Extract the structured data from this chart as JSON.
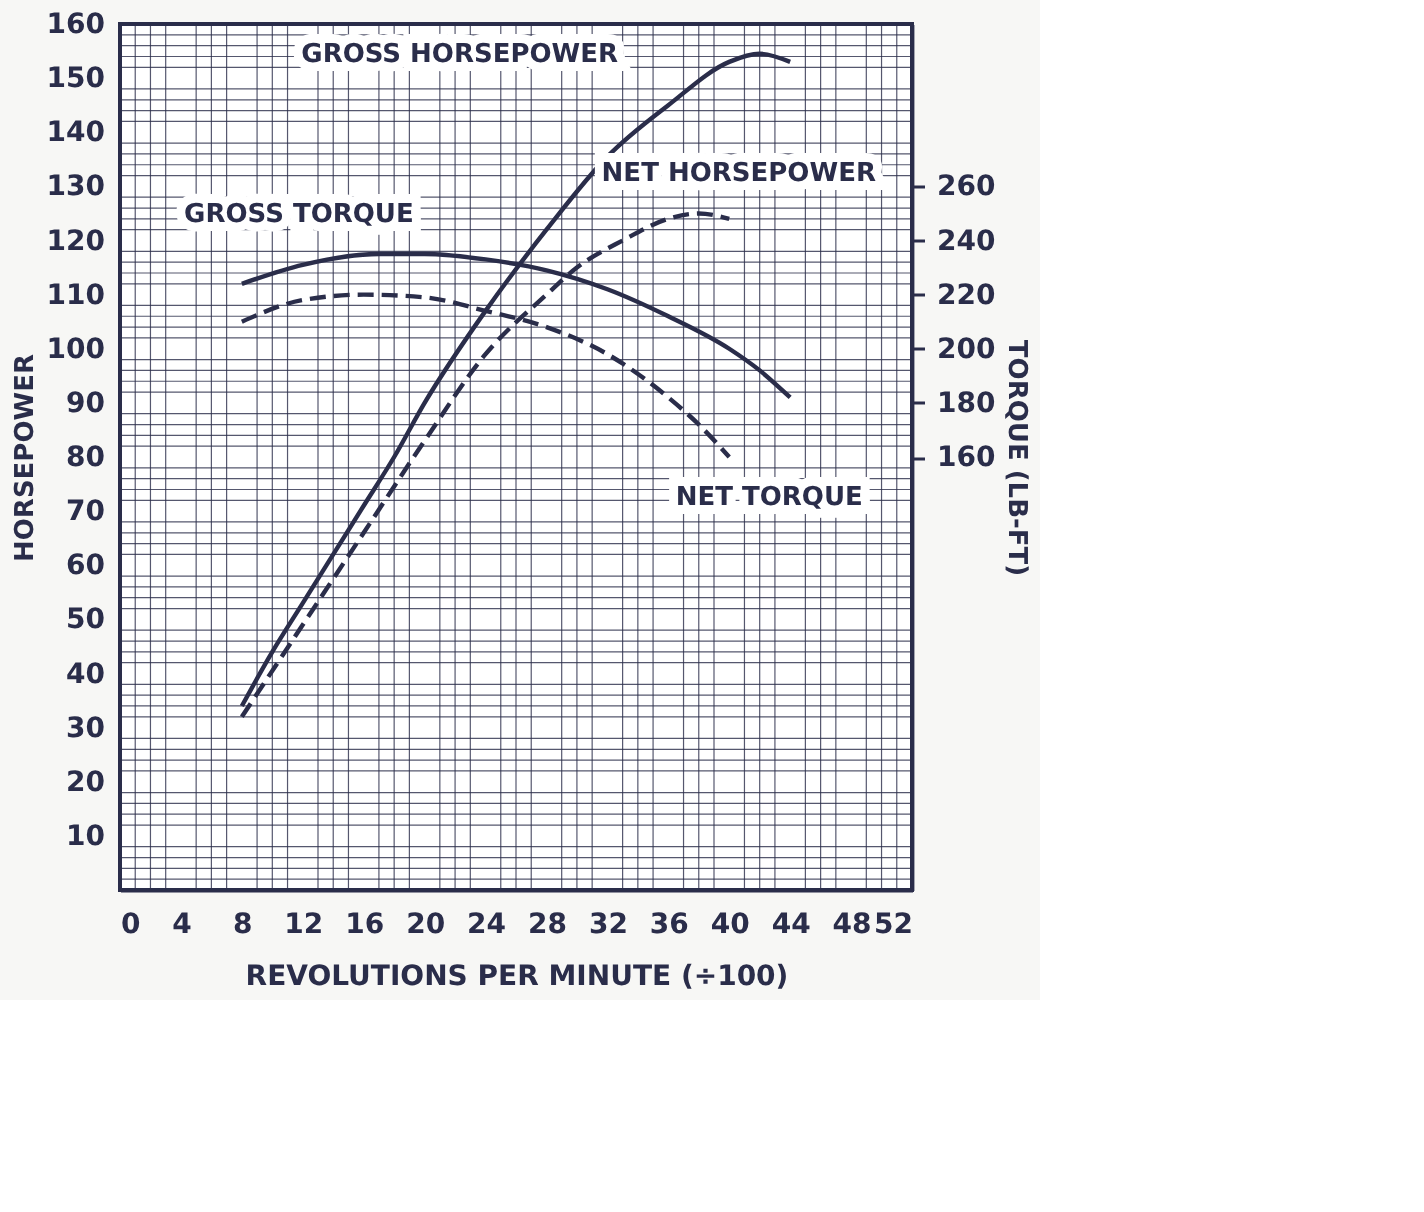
{
  "chart_data": {
    "type": "line",
    "xlabel": "REVOLUTIONS PER MINUTE (÷100)",
    "ylabel": "HORSEPOWER",
    "y2label": "TORQUE (LB-FT)",
    "xlim": [
      0,
      52
    ],
    "xticks": [
      0,
      4,
      8,
      12,
      16,
      20,
      24,
      28,
      32,
      36,
      40,
      44,
      48,
      52
    ],
    "ylim": [
      0,
      160
    ],
    "yticks": [
      {
        "value": 0,
        "label": null
      },
      10,
      20,
      30,
      40,
      50,
      60,
      70,
      80,
      90,
      100,
      110,
      120,
      130,
      140,
      150,
      160
    ],
    "y2lim": [
      0,
      320
    ],
    "y2ticks": [
      160,
      180,
      200,
      220,
      240,
      260
    ],
    "grid": true,
    "legend": false,
    "marker": "none",
    "series": [
      {
        "name": "GROSS HORSEPOWER",
        "color": "#2a2d4a",
        "line_style": "solid",
        "x": [
          8,
          10,
          12,
          14,
          16,
          18,
          20,
          24,
          28,
          32,
          36,
          40,
          42,
          44
        ],
        "values": [
          34,
          44,
          53,
          62,
          71,
          80,
          90,
          107,
          122,
          135.5,
          145,
          153,
          154.5,
          153
        ]
      },
      {
        "name": "NET HORSEPOWER",
        "color": "#2a2d4a",
        "line_style": "dashed",
        "x": [
          8,
          12,
          16,
          20,
          24,
          28,
          30,
          33,
          36,
          38,
          40
        ],
        "values": [
          32,
          49,
          66,
          83,
          99,
          110,
          115,
          120,
          124,
          125,
          124
        ]
      },
      {
        "name": "GROSS TORQUE",
        "color": "#2a2d4a",
        "line_style": "solid",
        "axis": "y2",
        "x": [
          8,
          12,
          17,
          20,
          24,
          28,
          32,
          36,
          40,
          42,
          44
        ],
        "values": [
          224,
          231,
          235,
          235,
          233,
          229,
          222,
          212,
          200,
          192,
          182
        ]
      },
      {
        "name": "NET TORQUE",
        "color": "#2a2d4a",
        "line_style": "dashed",
        "axis": "y2",
        "x": [
          8,
          12,
          16,
          20,
          24,
          28,
          32,
          36,
          38,
          40
        ],
        "values": [
          210,
          218,
          220,
          219,
          214,
          208,
          198,
          182,
          172,
          160
        ]
      }
    ]
  }
}
